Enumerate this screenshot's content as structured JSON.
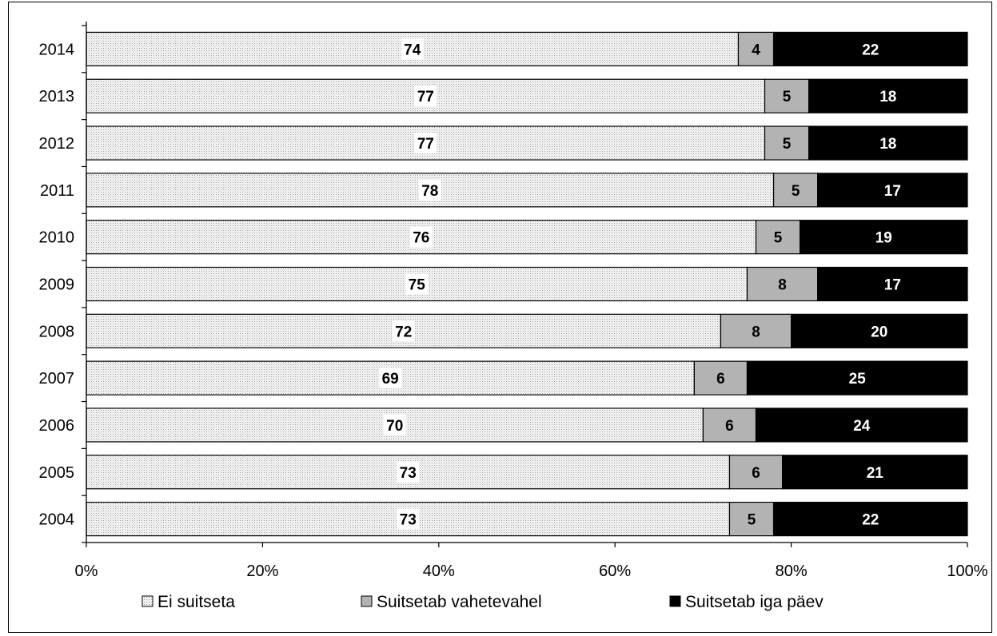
{
  "chart_data": {
    "type": "bar",
    "orientation": "horizontal",
    "stacked": "percent",
    "categories": [
      "2014",
      "2013",
      "2012",
      "2011",
      "2010",
      "2009",
      "2008",
      "2007",
      "2006",
      "2005",
      "2004"
    ],
    "series": [
      {
        "name": "Ei suitseta",
        "color": "#e6e6e6",
        "pattern": "fine-dots",
        "values": [
          74,
          77,
          77,
          78,
          76,
          75,
          72,
          69,
          70,
          73,
          73
        ]
      },
      {
        "name": "Suitsetab vahetevahel",
        "color": "#b3b3b3",
        "values": [
          4,
          5,
          5,
          5,
          5,
          8,
          8,
          6,
          6,
          6,
          5
        ]
      },
      {
        "name": "Suitsetab iga päev",
        "color": "#000000",
        "values": [
          22,
          18,
          18,
          17,
          19,
          17,
          20,
          25,
          24,
          21,
          22
        ]
      }
    ],
    "x_ticks": [
      "0%",
      "20%",
      "40%",
      "60%",
      "80%",
      "100%"
    ],
    "xlim": [
      0,
      100
    ],
    "grid": false,
    "legend_position": "bottom",
    "title": "",
    "xlabel": "",
    "ylabel": ""
  }
}
